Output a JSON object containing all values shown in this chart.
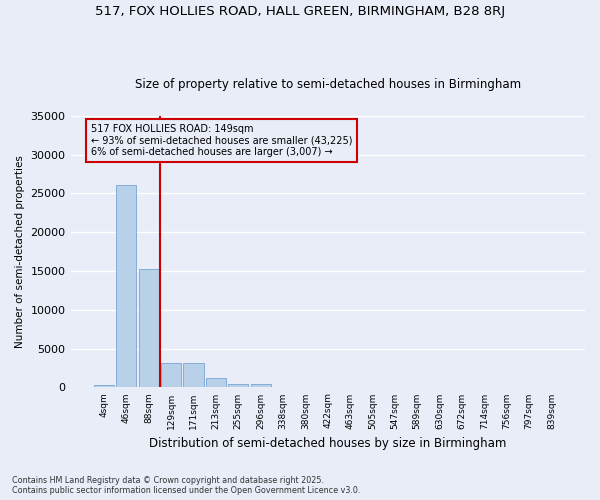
{
  "title1": "517, FOX HOLLIES ROAD, HALL GREEN, BIRMINGHAM, B28 8RJ",
  "title2": "Size of property relative to semi-detached houses in Birmingham",
  "xlabel": "Distribution of semi-detached houses by size in Birmingham",
  "ylabel": "Number of semi-detached properties",
  "bin_labels": [
    "4sqm",
    "46sqm",
    "88sqm",
    "129sqm",
    "171sqm",
    "213sqm",
    "255sqm",
    "296sqm",
    "338sqm",
    "380sqm",
    "422sqm",
    "463sqm",
    "505sqm",
    "547sqm",
    "589sqm",
    "630sqm",
    "672sqm",
    "714sqm",
    "756sqm",
    "797sqm",
    "839sqm"
  ],
  "bar_values": [
    350,
    26100,
    15200,
    3100,
    3100,
    1200,
    500,
    400,
    0,
    0,
    0,
    0,
    0,
    0,
    0,
    0,
    0,
    0,
    0,
    0,
    0
  ],
  "bar_color": "#b8d0e8",
  "bar_edge_color": "#6699cc",
  "vline_x_index": 3,
  "vline_color": "#cc0000",
  "annotation_title": "517 FOX HOLLIES ROAD: 149sqm",
  "annotation_line1": "← 93% of semi-detached houses are smaller (43,225)",
  "annotation_line2": "6% of semi-detached houses are larger (3,007) →",
  "annotation_box_color": "#cc0000",
  "ylim": [
    0,
    35000
  ],
  "yticks": [
    0,
    5000,
    10000,
    15000,
    20000,
    25000,
    30000,
    35000
  ],
  "footnote1": "Contains HM Land Registry data © Crown copyright and database right 2025.",
  "footnote2": "Contains public sector information licensed under the Open Government Licence v3.0.",
  "bg_color": "#e8edf8",
  "grid_color": "#ffffff"
}
